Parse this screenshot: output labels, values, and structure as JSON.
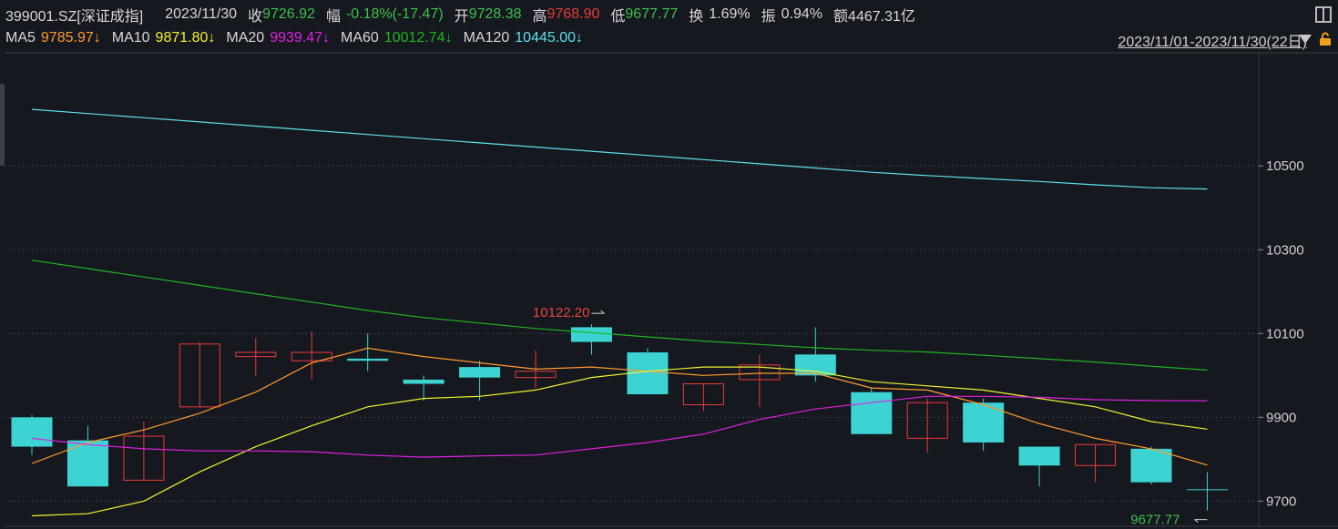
{
  "header": {
    "symbol": "399001.SZ[深证成指]",
    "date": "2023/11/30",
    "close_label": "收",
    "close": "9726.92",
    "change_label": "幅",
    "change": "-0.18%(-17.47)",
    "open_label": "开",
    "open": "9728.38",
    "high_label": "高",
    "high": "9768.90",
    "low_label": "低",
    "low": "9677.77",
    "turnover_label": "换",
    "turnover": "1.69%",
    "amplitude_label": "振",
    "amplitude": "0.94%",
    "amount_label": "额",
    "amount": "4467.31亿"
  },
  "ma_legend": [
    {
      "label": "MA5",
      "value": "9785.97↓",
      "color": "#ff9a2e"
    },
    {
      "label": "MA10",
      "value": "9871.80↓",
      "color": "#f2f230"
    },
    {
      "label": "MA20",
      "value": "9939.47↓",
      "color": "#e020e0"
    },
    {
      "label": "MA60",
      "value": "10012.74↓",
      "color": "#1fb51f"
    },
    {
      "label": "MA120",
      "value": "10445.00↓",
      "color": "#5fe0ec"
    }
  ],
  "range": "2023/11/01-2023/11/30(22日)",
  "colors": {
    "up": "#e83a3a",
    "down": "#3dd3d3",
    "background": "#15181e",
    "grid": "#3b3f47",
    "max_label": "#e8453a",
    "min_label": "#3fbf4f"
  },
  "chart_data": {
    "type": "candlestick",
    "ylim": [
      9640,
      10770
    ],
    "yticks": [
      9700,
      9900,
      10100,
      10300,
      10500
    ],
    "ytick_labels": [
      "9700",
      "9900",
      "10100",
      "10300",
      "10500"
    ],
    "candles": [
      {
        "open": 9900,
        "close": 9830,
        "high": 9905,
        "low": 9810
      },
      {
        "open": 9845,
        "close": 9735,
        "high": 9880,
        "low": 9735
      },
      {
        "open": 9750,
        "close": 9855,
        "high": 9890,
        "low": 9750
      },
      {
        "open": 9925,
        "close": 10075,
        "high": 10080,
        "low": 9925
      },
      {
        "open": 10045,
        "close": 10055,
        "high": 10090,
        "low": 10000
      },
      {
        "open": 10035,
        "close": 10055,
        "high": 10105,
        "low": 9990
      },
      {
        "open": 10040,
        "close": 10035,
        "high": 10100,
        "low": 10010
      },
      {
        "open": 9990,
        "close": 9980,
        "high": 10000,
        "low": 9940
      },
      {
        "open": 10020,
        "close": 9995,
        "high": 10035,
        "low": 9940
      },
      {
        "open": 9995,
        "close": 10010,
        "high": 10060,
        "low": 9970
      },
      {
        "open": 10115,
        "close": 10080,
        "high": 10122.2,
        "low": 10050
      },
      {
        "open": 10055,
        "close": 9955,
        "high": 10065,
        "low": 9955
      },
      {
        "open": 9930,
        "close": 9980,
        "high": 9980,
        "low": 9915
      },
      {
        "open": 9990,
        "close": 10025,
        "high": 10050,
        "low": 9925
      },
      {
        "open": 10050,
        "close": 10000,
        "high": 10115,
        "low": 9985
      },
      {
        "open": 9960,
        "close": 9860,
        "high": 9970,
        "low": 9860
      },
      {
        "open": 9850,
        "close": 9935,
        "high": 9945,
        "low": 9815
      },
      {
        "open": 9935,
        "close": 9840,
        "high": 9945,
        "low": 9820
      },
      {
        "open": 9830,
        "close": 9785,
        "high": 9830,
        "low": 9735
      },
      {
        "open": 9785,
        "close": 9835,
        "high": 9835,
        "low": 9745
      },
      {
        "open": 9825,
        "close": 9745,
        "high": 9830,
        "low": 9740
      },
      {
        "open": 9728.38,
        "close": 9726.92,
        "high": 9768.9,
        "low": 9677.77
      }
    ],
    "ma": [
      {
        "name": "MA5",
        "color": "#ff9a2e",
        "values": [
          9790,
          9840,
          9870,
          9910,
          9960,
          10030,
          10065,
          10045,
          10030,
          10015,
          10020,
          10010,
          10000,
          10005,
          10005,
          9970,
          9965,
          9930,
          9885,
          9850,
          9825,
          9785.97
        ]
      },
      {
        "name": "MA10",
        "color": "#f2f230",
        "values": [
          9665,
          9670,
          9700,
          9770,
          9830,
          9880,
          9925,
          9945,
          9950,
          9965,
          9995,
          10010,
          10020,
          10020,
          10010,
          9985,
          9975,
          9965,
          9945,
          9925,
          9890,
          9871.8
        ]
      },
      {
        "name": "MA20",
        "color": "#e020e0",
        "values": [
          9850,
          9835,
          9825,
          9820,
          9820,
          9818,
          9810,
          9805,
          9808,
          9810,
          9825,
          9840,
          9860,
          9895,
          9920,
          9935,
          9950,
          9950,
          9948,
          9942,
          9940,
          9939.47
        ]
      },
      {
        "name": "MA60",
        "color": "#1fb51f",
        "values": [
          10275,
          10255,
          10235,
          10215,
          10195,
          10175,
          10155,
          10138,
          10125,
          10112,
          10102,
          10092,
          10082,
          10074,
          10066,
          10060,
          10056,
          10048,
          10040,
          10032,
          10022,
          10012.74
        ]
      },
      {
        "name": "MA120",
        "color": "#5fe0ec",
        "values": [
          10635,
          10625,
          10615,
          10605,
          10595,
          10585,
          10575,
          10565,
          10555,
          10545,
          10535,
          10525,
          10515,
          10505,
          10495,
          10485,
          10477,
          10470,
          10463,
          10455,
          10448,
          10445.0
        ]
      }
    ],
    "max_label": "10122.20",
    "min_label": "9677.77"
  }
}
